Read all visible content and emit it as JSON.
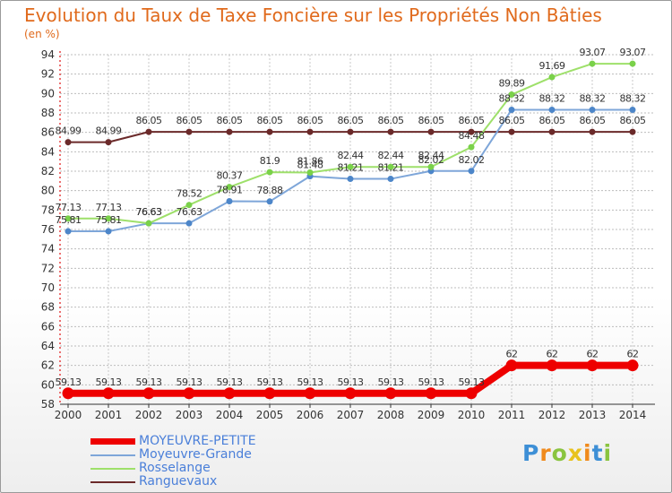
{
  "title": "Evolution du Taux de Taxe Foncière sur les Propriétés Non Bâties",
  "subtitle": "(en %)",
  "logo": "Proxiti",
  "colors": {
    "MOYEUVRE-PETITE": "#ee0000",
    "Moyeuvre-Grande": "#7ea6d9",
    "Rosselange": "#9ee06a",
    "Ranguevaux": "#6b2a2a",
    "title": "#e06a1c",
    "legend_text": "#4a7fd9"
  },
  "chart_data": {
    "type": "line",
    "title": "Evolution du Taux de Taxe Foncière sur les Propriétés Non Bâties",
    "ylabel": "(en %)",
    "xlabel": "",
    "ylim": [
      58,
      94
    ],
    "yticks": [
      58,
      60,
      62,
      64,
      66,
      68,
      70,
      72,
      74,
      76,
      78,
      80,
      82,
      84,
      86,
      88,
      90,
      92,
      94
    ],
    "grid": true,
    "legend_position": "bottom-left",
    "x": [
      "2000",
      "2001",
      "2002",
      "2003",
      "2004",
      "2005",
      "2006",
      "2007",
      "2008",
      "2009",
      "2010",
      "2011",
      "2012",
      "2013",
      "2014"
    ],
    "series": [
      {
        "name": "MOYEUVRE-PETITE",
        "values": [
          59.13,
          59.13,
          59.13,
          59.13,
          59.13,
          59.13,
          59.13,
          59.13,
          59.13,
          59.13,
          59.13,
          62,
          62,
          62,
          62
        ],
        "labels": [
          "59.13",
          "59.13",
          "59.13",
          "59.13",
          "59.13",
          "59.13",
          "59.13",
          "59.13",
          "59.13",
          "59.13",
          "59.13",
          "62",
          "62",
          "62",
          "62"
        ]
      },
      {
        "name": "Moyeuvre-Grande",
        "values": [
          75.81,
          75.81,
          76.63,
          76.63,
          78.91,
          78.88,
          81.48,
          81.21,
          81.21,
          82.02,
          82.02,
          88.32,
          88.32,
          88.32,
          88.32
        ],
        "labels": [
          "75.81",
          "75.81",
          "76.63",
          "76.63",
          "78.91",
          "78.88",
          "81.48",
          "81.21",
          "81.21",
          "82.02",
          "82.02",
          "88.32",
          "88.32",
          "88.32",
          "88.32"
        ]
      },
      {
        "name": "Rosselange",
        "values": [
          77.13,
          77.13,
          76.63,
          78.52,
          80.37,
          81.9,
          81.86,
          82.44,
          82.44,
          82.44,
          84.48,
          89.89,
          91.69,
          93.07,
          93.07
        ],
        "labels": [
          "77.13",
          "77.13",
          "76.63",
          "78.52",
          "80.37",
          "81.9",
          "81.86",
          "82.44",
          "82.44",
          "82.44",
          "84.48",
          "89.89",
          "91.69",
          "93.07",
          "93.07"
        ]
      },
      {
        "name": "Ranguevaux",
        "values": [
          84.99,
          84.99,
          86.05,
          86.05,
          86.05,
          86.05,
          86.05,
          86.05,
          86.05,
          86.05,
          86.05,
          86.05,
          86.05,
          86.05,
          86.05
        ],
        "labels": [
          "84.99",
          "84.99",
          "86.05",
          "86.05",
          "86.05",
          "86.05",
          "86.05",
          "86.05",
          "86.05",
          "86.05",
          "86.05",
          "86.05",
          "86.05",
          "86.05",
          "86.05"
        ]
      }
    ]
  }
}
